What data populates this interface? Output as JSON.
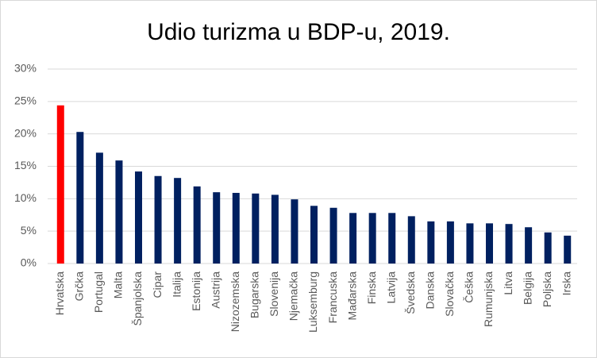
{
  "chart_data": {
    "type": "bar",
    "title": "Udio turizma u BDP-u, 2019.",
    "categories": [
      "Hrvatska",
      "Grčka",
      "Portugal",
      "Malta",
      "Španjolska",
      "Cipar",
      "Italija",
      "Estonija",
      "Austrija",
      "Nizozemska",
      "Bugarska",
      "Slovenija",
      "Njemačka",
      "Luksemburg",
      "Francuska",
      "Mađarska",
      "Finska",
      "Latvija",
      "Švedska",
      "Danska",
      "Slovačka",
      "Češka",
      "Rumunjska",
      "Litva",
      "Belgija",
      "Poljska",
      "Irska"
    ],
    "values": [
      24.4,
      20.3,
      17.1,
      15.9,
      14.2,
      13.5,
      13.2,
      11.9,
      11.0,
      10.9,
      10.8,
      10.6,
      9.9,
      8.9,
      8.6,
      7.8,
      7.8,
      7.8,
      7.3,
      6.5,
      6.5,
      6.2,
      6.2,
      6.1,
      5.6,
      4.8,
      4.3
    ],
    "colors": [
      "#ff0000",
      "#002060",
      "#002060",
      "#002060",
      "#002060",
      "#002060",
      "#002060",
      "#002060",
      "#002060",
      "#002060",
      "#002060",
      "#002060",
      "#002060",
      "#002060",
      "#002060",
      "#002060",
      "#002060",
      "#002060",
      "#002060",
      "#002060",
      "#002060",
      "#002060",
      "#002060",
      "#002060",
      "#002060",
      "#002060",
      "#002060"
    ],
    "ylim": [
      0,
      30
    ],
    "yticks": [
      {
        "value": 0,
        "label": "0%"
      },
      {
        "value": 5,
        "label": "5%"
      },
      {
        "value": 10,
        "label": "10%"
      },
      {
        "value": 15,
        "label": "15%"
      },
      {
        "value": 20,
        "label": "20%"
      },
      {
        "value": 25,
        "label": "25%"
      },
      {
        "value": 30,
        "label": "30%"
      }
    ],
    "grid": true
  }
}
